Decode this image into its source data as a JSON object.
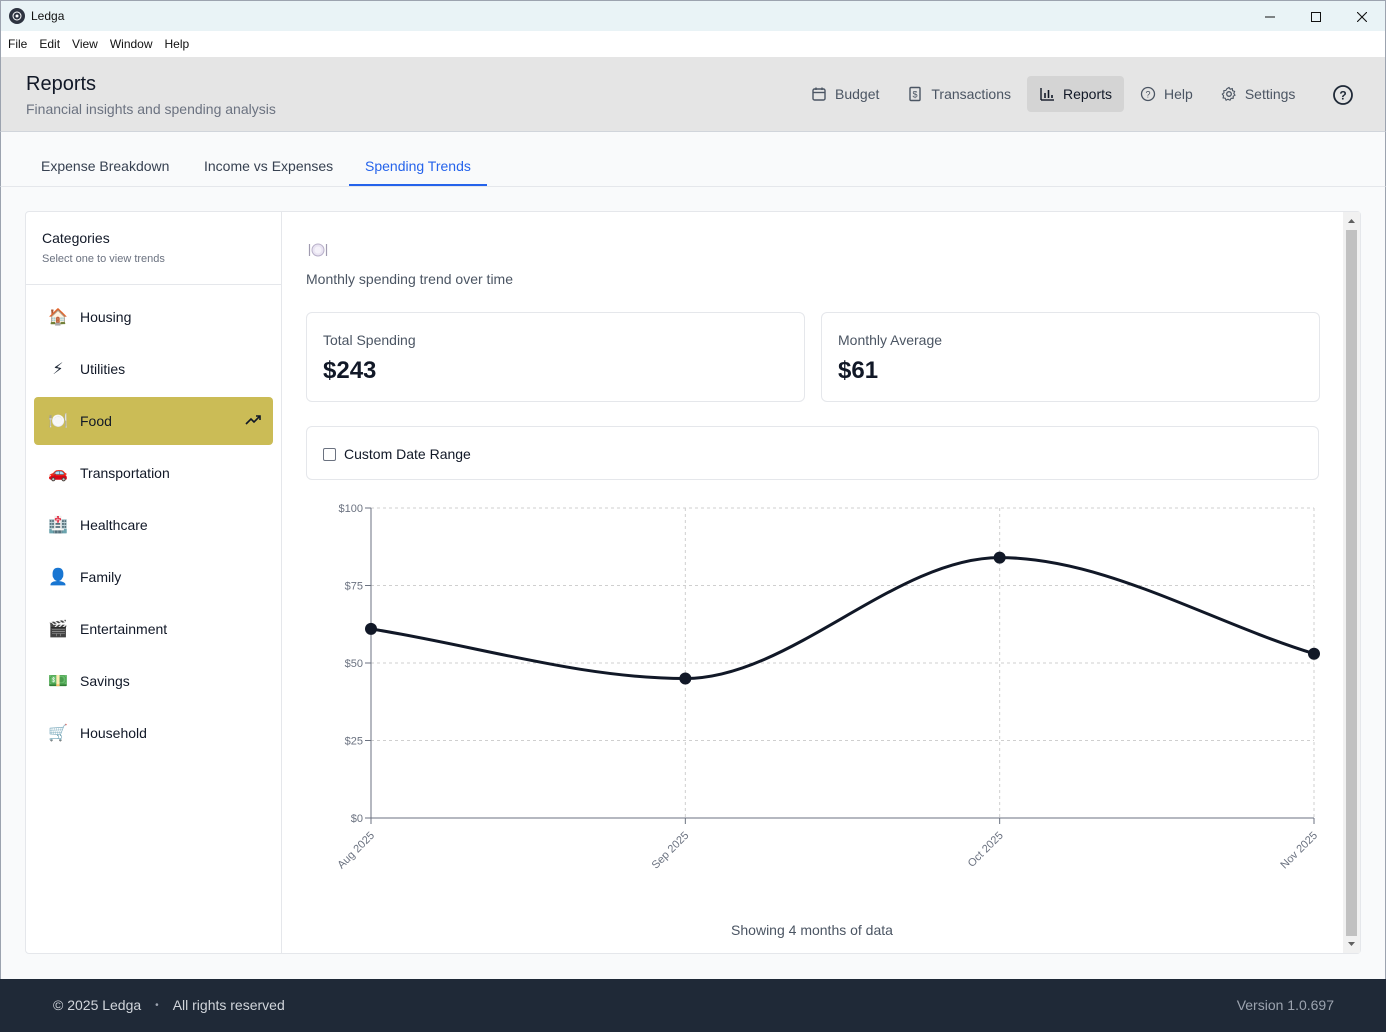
{
  "window": {
    "app_name": "Ledga",
    "menu": [
      "File",
      "Edit",
      "View",
      "Window",
      "Help"
    ]
  },
  "header": {
    "title": "Reports",
    "subtitle": "Financial insights and spending analysis",
    "nav": [
      {
        "label": "Budget",
        "icon": "calendar-icon"
      },
      {
        "label": "Transactions",
        "icon": "dollar-document-icon"
      },
      {
        "label": "Reports",
        "icon": "bar-chart-icon",
        "active": true
      },
      {
        "label": "Help",
        "icon": "help-icon"
      },
      {
        "label": "Settings",
        "icon": "gear-icon"
      }
    ]
  },
  "tabs": [
    {
      "label": "Expense Breakdown"
    },
    {
      "label": "Income vs Expenses"
    },
    {
      "label": "Spending Trends",
      "active": true
    }
  ],
  "sidebar": {
    "title": "Categories",
    "subtitle": "Select one to view trends",
    "items": [
      {
        "label": "Housing",
        "icon": "🏠"
      },
      {
        "label": "Utilities",
        "icon": "⚡"
      },
      {
        "label": "Food",
        "icon": "🍽️",
        "active": true
      },
      {
        "label": "Transportation",
        "icon": "🚗"
      },
      {
        "label": "Healthcare",
        "icon": "🏥"
      },
      {
        "label": "Family",
        "icon": "👤"
      },
      {
        "label": "Entertainment",
        "icon": "🎬"
      },
      {
        "label": "Savings",
        "icon": "💵"
      },
      {
        "label": "Household",
        "icon": "🛒"
      }
    ]
  },
  "content": {
    "subtitle": "Monthly spending trend over time",
    "total_label": "Total Spending",
    "total_value": "$243",
    "average_label": "Monthly Average",
    "average_value": "$61",
    "custom_range_label": "Custom Date Range",
    "custom_range_checked": false,
    "footer_note": "Showing 4 months of data"
  },
  "chart_data": {
    "type": "line",
    "categories": [
      "Aug 2025",
      "Sep 2025",
      "Oct 2025",
      "Nov 2025"
    ],
    "series": [
      {
        "values": [
          61,
          45,
          84,
          53
        ],
        "color": "#111827"
      }
    ],
    "y_ticks": [
      "$0",
      "$25",
      "$50",
      "$75",
      "$100"
    ],
    "ylim": [
      0,
      100
    ],
    "grid": true
  },
  "footer": {
    "copyright": "© 2025 Ledga",
    "rights": "All rights reserved",
    "version": "Version 1.0.697"
  }
}
